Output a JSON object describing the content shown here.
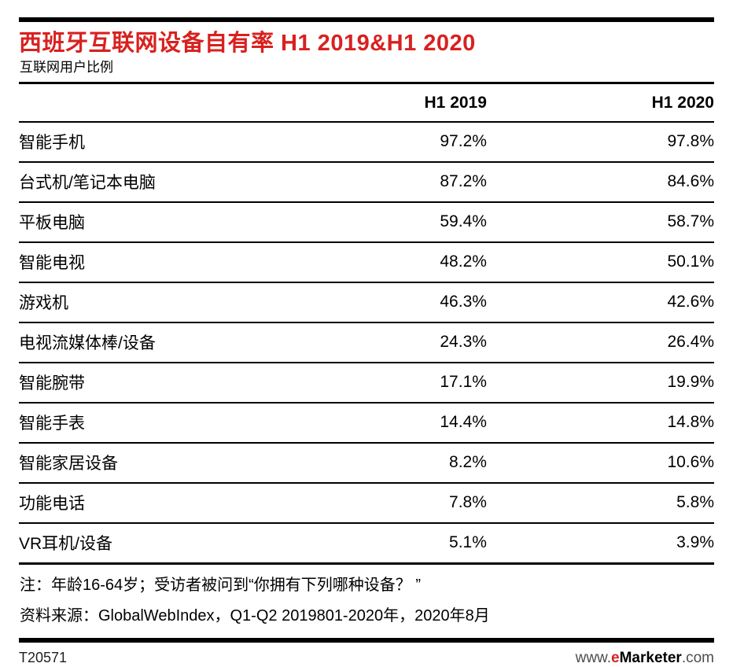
{
  "header": {
    "title": "西班牙互联网设备自有率 H1 2019&H1 2020",
    "subtitle": "互联网用户比例"
  },
  "table": {
    "columns": [
      "H1 2019",
      "H1 2020"
    ],
    "rows": [
      {
        "label": "智能手机",
        "h1_2019": "97.2%",
        "h1_2020": "97.8%"
      },
      {
        "label": "台式机/笔记本电脑",
        "h1_2019": "87.2%",
        "h1_2020": "84.6%"
      },
      {
        "label": "平板电脑",
        "h1_2019": "59.4%",
        "h1_2020": "58.7%"
      },
      {
        "label": "智能电视",
        "h1_2019": "48.2%",
        "h1_2020": "50.1%"
      },
      {
        "label": "游戏机",
        "h1_2019": "46.3%",
        "h1_2020": "42.6%"
      },
      {
        "label": "电视流媒体棒/设备",
        "h1_2019": "24.3%",
        "h1_2020": "26.4%"
      },
      {
        "label": "智能腕带",
        "h1_2019": "17.1%",
        "h1_2020": "19.9%"
      },
      {
        "label": "智能手表",
        "h1_2019": "14.4%",
        "h1_2020": "14.8%"
      },
      {
        "label": "智能家居设备",
        "h1_2019": "8.2%",
        "h1_2020": "10.6%"
      },
      {
        "label": "功能电话",
        "h1_2019": "7.8%",
        "h1_2020": "5.8%"
      },
      {
        "label": "VR耳机/设备",
        "h1_2019": "5.1%",
        "h1_2020": "3.9%"
      }
    ]
  },
  "notes": {
    "note": "注：年龄16-64岁；受访者被问到“你拥有下列哪种设备？ ”",
    "source": "资料来源：GlobalWebIndex，Q1-Q2 2019801-2020年，2020年8月"
  },
  "footer": {
    "id": "T20571",
    "url_prefix": "www.",
    "url_e": "e",
    "url_brand": "Marketer",
    "url_suffix": ".com"
  },
  "colors": {
    "accent_red": "#d8211f",
    "text": "#000000",
    "footer_gray": "#4d4d4f",
    "rule_black": "#000000"
  },
  "chart_data": {
    "type": "table",
    "title": "西班牙互联网设备自有率 H1 2019&H1 2020",
    "subtitle": "互联网用户比例",
    "unit": "%",
    "categories": [
      "智能手机",
      "台式机/笔记本电脑",
      "平板电脑",
      "智能电视",
      "游戏机",
      "电视流媒体棒/设备",
      "智能腕带",
      "智能手表",
      "智能家居设备",
      "功能电话",
      "VR耳机/设备"
    ],
    "series": [
      {
        "name": "H1 2019",
        "values": [
          97.2,
          87.2,
          59.4,
          48.2,
          46.3,
          24.3,
          17.1,
          14.4,
          8.2,
          7.8,
          5.1
        ]
      },
      {
        "name": "H1 2020",
        "values": [
          97.8,
          84.6,
          58.7,
          50.1,
          42.6,
          26.4,
          19.9,
          14.8,
          10.6,
          5.8,
          3.9
        ]
      }
    ],
    "source": "GlobalWebIndex, 2020年8月",
    "figure_id": "T20571"
  }
}
